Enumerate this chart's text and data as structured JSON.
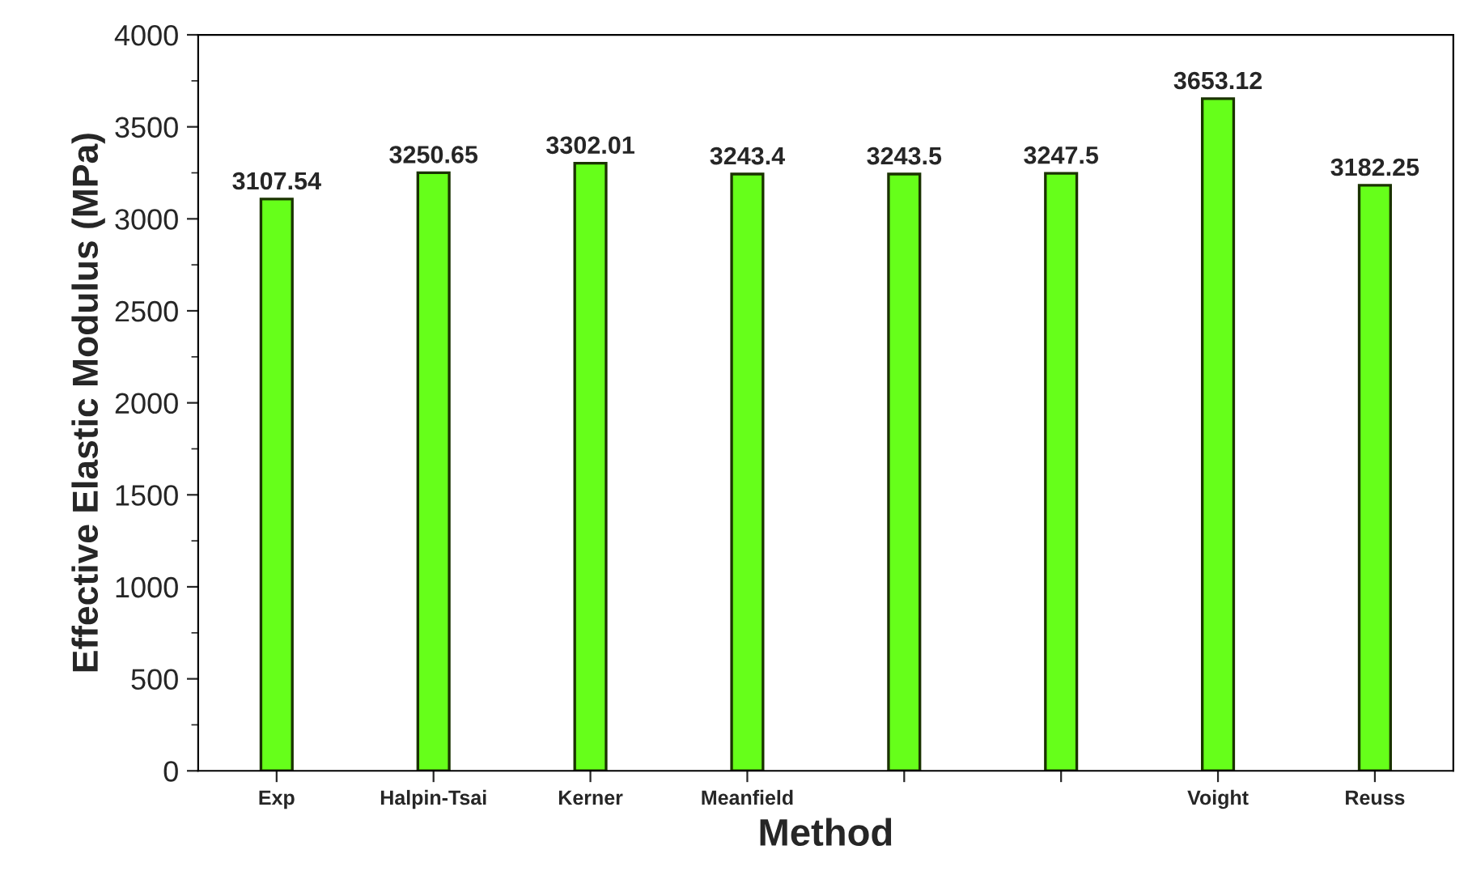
{
  "chart_data": {
    "type": "bar",
    "xlabel": "Method",
    "ylabel": "Effective Elastic Modulus (MPa)",
    "categories": [
      "Exp",
      "Halpin-Tsai",
      "Kerner",
      "Meanfield",
      null,
      null,
      "Voight",
      "Reuss"
    ],
    "values": [
      3107.54,
      3250.65,
      3302.01,
      3243.4,
      3243.5,
      3247.5,
      3653.12,
      3182.25
    ],
    "color": "#66ff1a",
    "data_labels": true,
    "ylim": [
      0,
      4000
    ],
    "yticks": [
      0,
      500,
      1000,
      1500,
      2000,
      2500,
      3000,
      3500,
      4000
    ],
    "grid": false,
    "legend": false
  }
}
